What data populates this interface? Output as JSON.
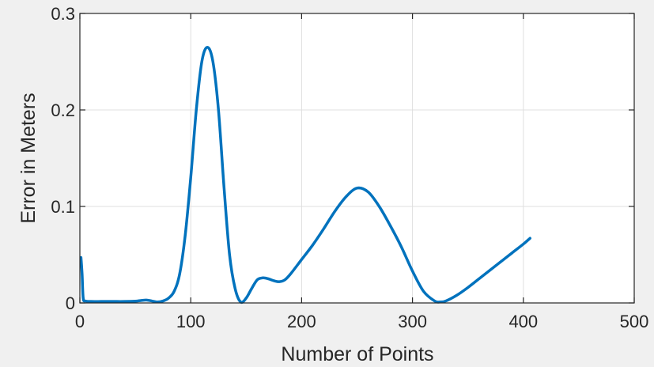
{
  "chart_data": {
    "type": "line",
    "title": "",
    "xlabel": "Number of Points",
    "ylabel": "Error in Meters",
    "xlim": [
      0,
      500
    ],
    "ylim": [
      0,
      0.3
    ],
    "grid": true,
    "xticks": [
      0,
      100,
      200,
      300,
      400,
      500
    ],
    "xtick_labels": [
      "0",
      "100",
      "200",
      "300",
      "400",
      "500"
    ],
    "yticks": [
      0,
      0.1,
      0.2,
      0.3
    ],
    "ytick_labels": [
      "0",
      "0.1",
      "0.2",
      "0.3"
    ],
    "colors": {
      "line": "#0072BD",
      "background": "#f0f0f0",
      "plot_area": "#ffffff",
      "grid": "#dfdfdf"
    },
    "series": [
      {
        "color": "#0072BD",
        "x": [
          1,
          2,
          3,
          5,
          10,
          20,
          30,
          40,
          50,
          55,
          60,
          65,
          70,
          75,
          80,
          85,
          90,
          95,
          100,
          105,
          110,
          115,
          120,
          125,
          130,
          135,
          140,
          145,
          150,
          155,
          160,
          165,
          170,
          175,
          180,
          185,
          190,
          200,
          210,
          220,
          230,
          240,
          250,
          260,
          270,
          280,
          290,
          300,
          310,
          320,
          325,
          330,
          340,
          350,
          360,
          370,
          380,
          390,
          400,
          406
        ],
        "y": [
          0.047,
          0.03,
          0.005,
          0.002,
          0.0015,
          0.0015,
          0.0015,
          0.0015,
          0.0018,
          0.0025,
          0.003,
          0.002,
          0.001,
          0.002,
          0.005,
          0.012,
          0.03,
          0.07,
          0.13,
          0.2,
          0.25,
          0.265,
          0.25,
          0.2,
          0.12,
          0.05,
          0.015,
          0.001,
          0.005,
          0.015,
          0.024,
          0.026,
          0.025,
          0.023,
          0.022,
          0.024,
          0.03,
          0.045,
          0.06,
          0.077,
          0.095,
          0.11,
          0.119,
          0.115,
          0.1,
          0.08,
          0.058,
          0.033,
          0.012,
          0.002,
          0.001,
          0.002,
          0.008,
          0.016,
          0.025,
          0.034,
          0.043,
          0.052,
          0.061,
          0.067
        ]
      }
    ]
  }
}
